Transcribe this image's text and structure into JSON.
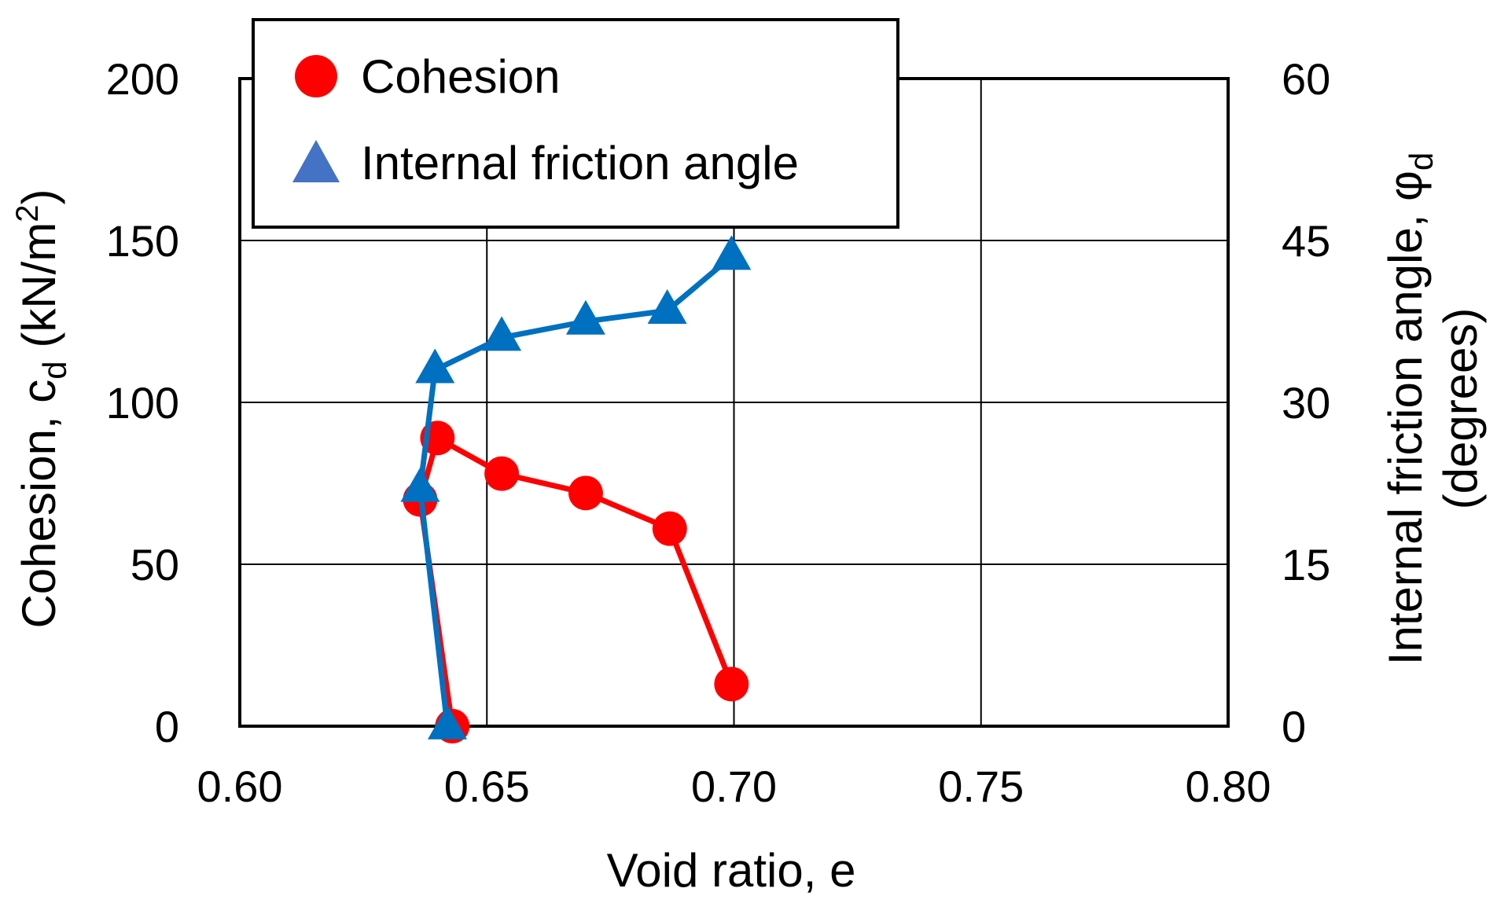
{
  "chart_data": {
    "type": "line",
    "x_axis": {
      "label": "Void ratio, e",
      "range": [
        0.6,
        0.8
      ],
      "ticks": [
        "0.60",
        "0.65",
        "0.70",
        "0.75",
        "0.80"
      ],
      "tick_values": [
        0.6,
        0.65,
        0.7,
        0.75,
        0.8
      ],
      "grid": true
    },
    "y_axis_left": {
      "label_prefix": "Cohesion, c",
      "label_sub": "d",
      "label_unit_open": " (kN/m",
      "label_sup": "2",
      "label_unit_close": ")",
      "range": [
        0,
        200
      ],
      "ticks": [
        "0",
        "50",
        "100",
        "150",
        "200"
      ],
      "tick_values": [
        0,
        50,
        100,
        150,
        200
      ],
      "grid": true
    },
    "y_axis_right": {
      "label_line1_prefix": "Internal friction angle, ",
      "label_line1_symbol": "φ",
      "label_line1_sub": "d",
      "label_line2": "(degrees)",
      "range": [
        0,
        60
      ],
      "ticks": [
        "0",
        "15",
        "30",
        "45",
        "60"
      ],
      "tick_values": [
        0,
        15,
        30,
        45,
        60
      ]
    },
    "series": [
      {
        "name": "Cohesion",
        "axis": "left",
        "marker": "circle",
        "color": "#ff0000",
        "points": [
          {
            "x": 0.643,
            "y": 0
          },
          {
            "x": 0.6365,
            "y": 70
          },
          {
            "x": 0.64,
            "y": 89
          },
          {
            "x": 0.653,
            "y": 78
          },
          {
            "x": 0.67,
            "y": 72
          },
          {
            "x": 0.687,
            "y": 61
          },
          {
            "x": 0.6995,
            "y": 13
          }
        ]
      },
      {
        "name": "Internal friction angle",
        "axis": "right",
        "marker": "triangle",
        "color": "#0070c0",
        "marker_fill": "#4472c4",
        "points": [
          {
            "x": 0.642,
            "y": 0
          },
          {
            "x": 0.6365,
            "y": 22
          },
          {
            "x": 0.6395,
            "y": 33
          },
          {
            "x": 0.653,
            "y": 36
          },
          {
            "x": 0.67,
            "y": 37.5
          },
          {
            "x": 0.6865,
            "y": 38.5
          },
          {
            "x": 0.6995,
            "y": 43.5
          }
        ]
      }
    ],
    "legend": {
      "placement": "top-left",
      "entries": [
        "Cohesion",
        "Internal friction angle"
      ]
    }
  }
}
